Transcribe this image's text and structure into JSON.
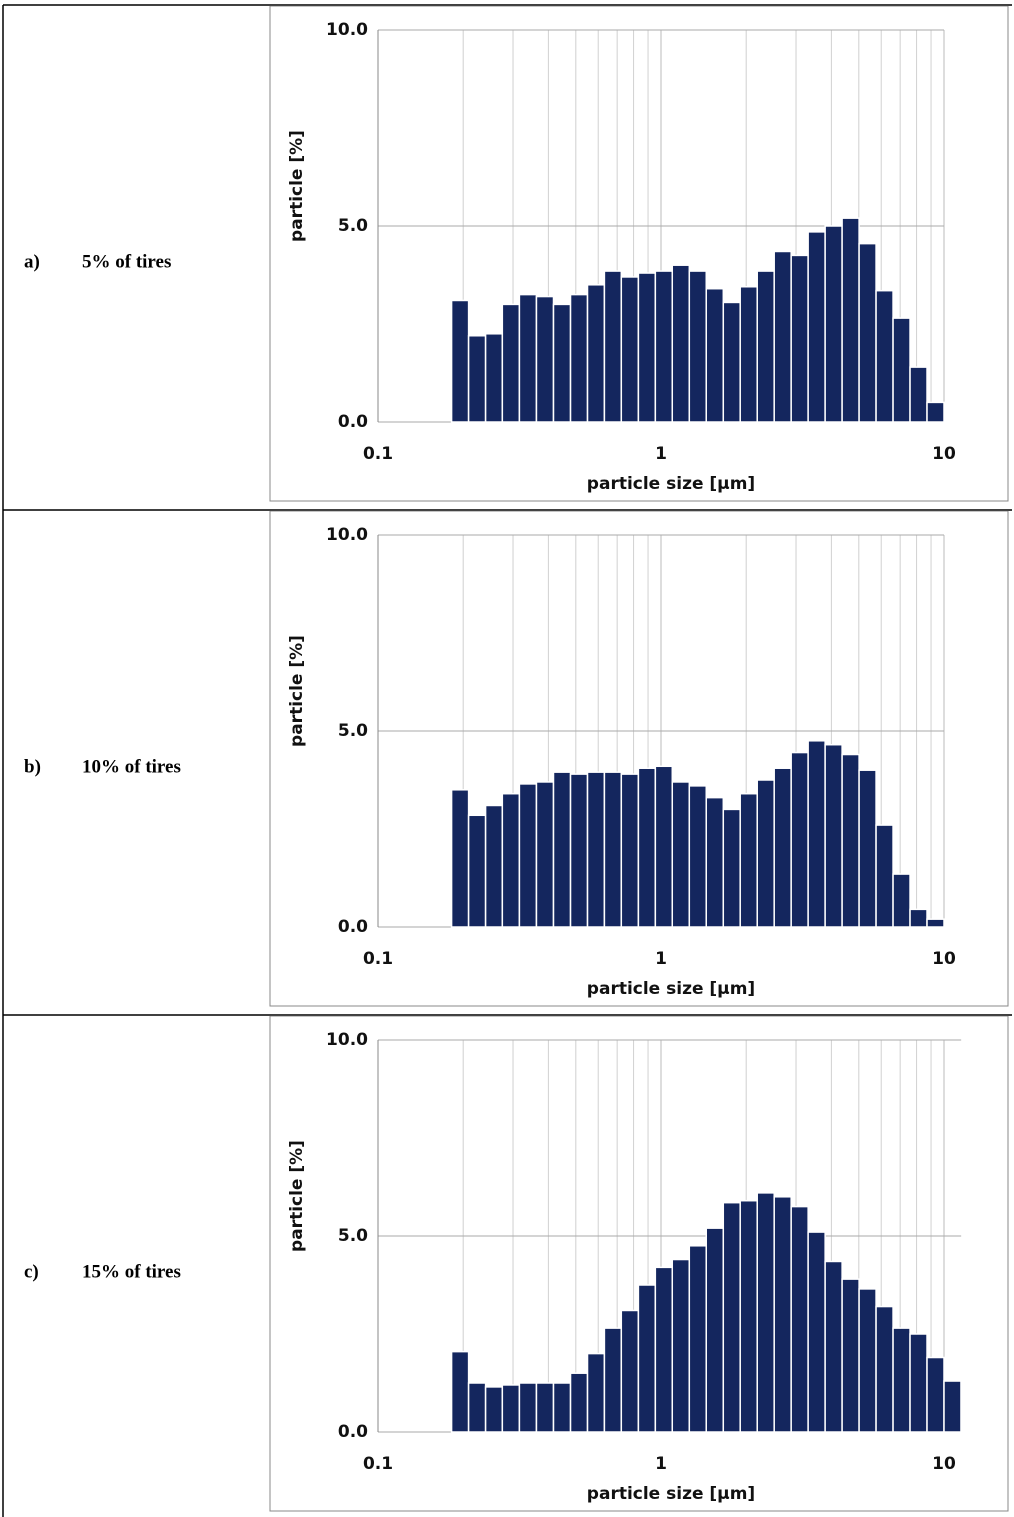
{
  "rows": [
    {
      "label": "a)",
      "caption": "5% of tires"
    },
    {
      "label": "b)",
      "caption": "10% of tires"
    },
    {
      "label": "c)",
      "caption": "15% of tires"
    }
  ],
  "chart_data": [
    {
      "type": "histogram",
      "xlabel": "particle size [µm]",
      "ylabel": "particle [%]",
      "color": "#14265e",
      "log_x": true,
      "grid": true,
      "bins": [
        0.182,
        0.209,
        0.24,
        0.275,
        0.316,
        0.363,
        0.417,
        0.479,
        0.55,
        0.631,
        0.724,
        0.832,
        0.955,
        1.096,
        1.259,
        1.445,
        1.66,
        1.905,
        2.188,
        2.512,
        2.884,
        3.311,
        3.802,
        4.365,
        5.012,
        5.754,
        6.607,
        7.586,
        8.71,
        10.0
      ],
      "values": [
        3.1,
        2.2,
        2.25,
        3.0,
        3.25,
        3.2,
        3.0,
        3.25,
        3.5,
        3.85,
        3.7,
        3.8,
        3.85,
        4.0,
        3.85,
        3.4,
        3.05,
        3.45,
        3.85,
        4.35,
        4.25,
        4.85,
        5.0,
        5.2,
        4.55,
        3.35,
        2.65,
        1.4,
        0.5
      ],
      "xlim": [
        0.1,
        10
      ],
      "xticks": [
        0.1,
        1,
        10
      ],
      "x_minor_grid": [
        0.2,
        0.3,
        0.4,
        0.5,
        0.6,
        0.7,
        0.8,
        0.9,
        2,
        3,
        4,
        5,
        6,
        7,
        8,
        9
      ],
      "ylim": [
        0,
        10
      ],
      "yticks": [
        {
          "value": 0,
          "label": "0.0"
        },
        {
          "value": 5,
          "label": "5.0"
        },
        {
          "value": 10,
          "label": "10.0"
        }
      ]
    },
    {
      "type": "histogram",
      "xlabel": "particle size [µm]",
      "ylabel": "particle [%]",
      "color": "#14265e",
      "log_x": true,
      "grid": true,
      "bins": [
        0.182,
        0.209,
        0.24,
        0.275,
        0.316,
        0.363,
        0.417,
        0.479,
        0.55,
        0.631,
        0.724,
        0.832,
        0.955,
        1.096,
        1.259,
        1.445,
        1.66,
        1.905,
        2.188,
        2.512,
        2.884,
        3.311,
        3.802,
        4.365,
        5.012,
        5.754,
        6.607,
        7.586,
        8.71,
        10.0
      ],
      "values": [
        3.5,
        2.85,
        3.1,
        3.4,
        3.65,
        3.7,
        3.95,
        3.9,
        3.95,
        3.95,
        3.9,
        4.05,
        4.1,
        3.7,
        3.6,
        3.3,
        3.0,
        3.4,
        3.75,
        4.05,
        4.45,
        4.75,
        4.65,
        4.4,
        4.0,
        2.6,
        1.35,
        0.45,
        0.2
      ],
      "xlim": [
        0.1,
        10
      ],
      "xticks": [
        0.1,
        1,
        10
      ],
      "x_minor_grid": [
        0.2,
        0.3,
        0.4,
        0.5,
        0.6,
        0.7,
        0.8,
        0.9,
        2,
        3,
        4,
        5,
        6,
        7,
        8,
        9
      ],
      "ylim": [
        0,
        10
      ],
      "yticks": [
        {
          "value": 0,
          "label": "0.0"
        },
        {
          "value": 5,
          "label": "5.0"
        },
        {
          "value": 10,
          "label": "10.0"
        }
      ]
    },
    {
      "type": "histogram",
      "xlabel": "particle size [µm]",
      "ylabel": "particle [%]",
      "color": "#14265e",
      "log_x": true,
      "grid": true,
      "bins": [
        0.182,
        0.209,
        0.24,
        0.275,
        0.316,
        0.363,
        0.417,
        0.479,
        0.55,
        0.631,
        0.724,
        0.832,
        0.955,
        1.096,
        1.259,
        1.445,
        1.66,
        1.905,
        2.188,
        2.512,
        2.884,
        3.311,
        3.802,
        4.365,
        5.012,
        5.754,
        6.607,
        7.586,
        8.71,
        10.0,
        11.48
      ],
      "values": [
        2.05,
        1.25,
        1.15,
        1.2,
        1.25,
        1.25,
        1.25,
        1.5,
        2.0,
        2.65,
        3.1,
        3.75,
        4.2,
        4.4,
        4.75,
        5.2,
        5.85,
        5.9,
        6.1,
        6.0,
        5.75,
        5.1,
        4.35,
        3.9,
        3.65,
        3.2,
        2.65,
        2.5,
        1.9,
        1.3
      ],
      "xlim": [
        0.1,
        11.5
      ],
      "xticks": [
        0.1,
        1,
        10
      ],
      "x_minor_grid": [
        0.2,
        0.3,
        0.4,
        0.5,
        0.6,
        0.7,
        0.8,
        0.9,
        2,
        3,
        4,
        5,
        6,
        7,
        8,
        9
      ],
      "ylim": [
        0,
        10
      ],
      "yticks": [
        {
          "value": 0,
          "label": "0.0"
        },
        {
          "value": 5,
          "label": "5.0"
        },
        {
          "value": 10,
          "label": "10.0"
        }
      ]
    }
  ]
}
